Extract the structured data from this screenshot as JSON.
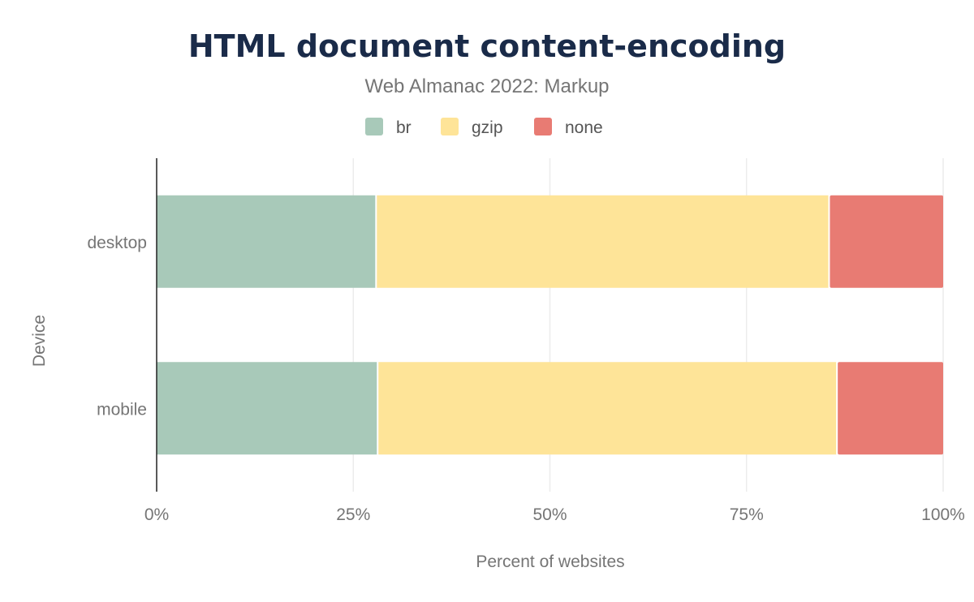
{
  "chart_data": {
    "type": "bar",
    "orientation": "horizontal",
    "stacked": true,
    "title": "HTML document content-encoding",
    "subtitle": "Web Almanac 2022: Markup",
    "xlabel": "Percent of websites",
    "ylabel": "Device",
    "xlim": [
      0,
      100
    ],
    "x_ticks": [
      "0%",
      "25%",
      "50%",
      "75%",
      "100%"
    ],
    "categories": [
      "desktop",
      "mobile"
    ],
    "series": [
      {
        "name": "br",
        "color": "#a8c9b9",
        "values": [
          28.0,
          28.2
        ]
      },
      {
        "name": "gzip",
        "color": "#fee498",
        "values": [
          57.6,
          58.4
        ]
      },
      {
        "name": "none",
        "color": "#e87b73",
        "values": [
          14.4,
          13.4
        ]
      }
    ],
    "legend_position": "top",
    "grid": true
  }
}
